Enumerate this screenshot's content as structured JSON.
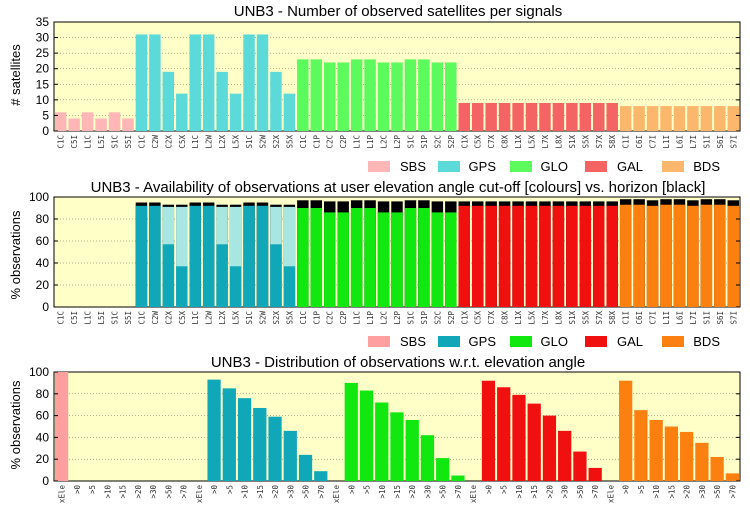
{
  "colors": {
    "plot_bg": "#ffffc8",
    "SBS": "#ffb6b6",
    "GPS": "#5cdada",
    "GLO": "#5cfa5c",
    "GAL": "#f56464",
    "BDS": "#fbb86c",
    "SBS2": "#ff9f9f",
    "GPS2": "#10a8b8",
    "GLO2": "#10e810",
    "GAL2": "#f01010",
    "BDS2": "#fb8010",
    "GPS_light": "#a8e6e2",
    "horizon": "#000000"
  },
  "chart_data": [
    {
      "type": "bar",
      "title": "UNB3 - Number of observed satellites per signals",
      "ylabel": "# satellites",
      "ylim": [
        0,
        35
      ],
      "yticks": [
        0,
        5,
        10,
        15,
        20,
        25,
        30,
        35
      ],
      "legend": [
        "SBS",
        "GPS",
        "GLO",
        "GAL",
        "BDS"
      ],
      "legend_position": "bottom-right",
      "categories": [
        "C1C",
        "C5I",
        "L1C",
        "L5I",
        "S1C",
        "S5I",
        "C1C",
        "C2W",
        "C2X",
        "C5X",
        "L1C",
        "L2W",
        "L2X",
        "L5X",
        "S1C",
        "S2W",
        "S2X",
        "S5X",
        "C1C",
        "C1P",
        "C2C",
        "C2P",
        "L1C",
        "L1P",
        "L2C",
        "L2P",
        "S1C",
        "S1P",
        "S2C",
        "S2P",
        "C1X",
        "C5X",
        "C7X",
        "C8X",
        "L1X",
        "L5X",
        "L7X",
        "L8X",
        "S1X",
        "S5X",
        "S7X",
        "S8X",
        "C1I",
        "C6I",
        "C7I",
        "L1I",
        "L6I",
        "L7I",
        "S1I",
        "S6I",
        "S7I"
      ],
      "systems": [
        "SBS",
        "SBS",
        "SBS",
        "SBS",
        "SBS",
        "SBS",
        "GPS",
        "GPS",
        "GPS",
        "GPS",
        "GPS",
        "GPS",
        "GPS",
        "GPS",
        "GPS",
        "GPS",
        "GPS",
        "GPS",
        "GLO",
        "GLO",
        "GLO",
        "GLO",
        "GLO",
        "GLO",
        "GLO",
        "GLO",
        "GLO",
        "GLO",
        "GLO",
        "GLO",
        "GAL",
        "GAL",
        "GAL",
        "GAL",
        "GAL",
        "GAL",
        "GAL",
        "GAL",
        "GAL",
        "GAL",
        "GAL",
        "GAL",
        "BDS",
        "BDS",
        "BDS",
        "BDS",
        "BDS",
        "BDS",
        "BDS",
        "BDS",
        "BDS"
      ],
      "values": [
        6,
        4,
        6,
        4,
        6,
        4,
        31,
        31,
        19,
        12,
        31,
        31,
        19,
        12,
        31,
        31,
        19,
        12,
        23,
        23,
        22,
        22,
        23,
        23,
        22,
        22,
        23,
        23,
        22,
        22,
        9,
        9,
        9,
        9,
        9,
        9,
        9,
        9,
        9,
        9,
        9,
        9,
        8,
        8,
        8,
        8,
        8,
        8,
        8,
        8,
        8
      ]
    },
    {
      "type": "bar",
      "title": "UNB3 - Availability of observations at user elevation angle cut-off [colours] vs. horizon [black]",
      "ylabel": "% observations",
      "ylim": [
        0,
        100
      ],
      "yticks": [
        0,
        20,
        40,
        60,
        80,
        100
      ],
      "legend": [
        "SBS",
        "GPS",
        "GLO",
        "GAL",
        "BDS"
      ],
      "legend_position": "bottom-right",
      "categories": [
        "C1C",
        "C5I",
        "L1C",
        "L5I",
        "S1C",
        "S5I",
        "C1C",
        "C2W",
        "C2X",
        "C5X",
        "L1C",
        "L2W",
        "L2X",
        "L5X",
        "S1C",
        "S2W",
        "S2X",
        "S5X",
        "C1C",
        "C1P",
        "C2C",
        "C2P",
        "L1C",
        "L1P",
        "L2C",
        "L2P",
        "S1C",
        "S1P",
        "S2C",
        "S2P",
        "C1X",
        "C5X",
        "C7X",
        "C8X",
        "L1X",
        "L5X",
        "L7X",
        "L8X",
        "S1X",
        "S5X",
        "S7X",
        "S8X",
        "C1I",
        "C6I",
        "C7I",
        "L1I",
        "L6I",
        "L7I",
        "S1I",
        "S6I",
        "S7I"
      ],
      "systems": [
        "SBS",
        "SBS",
        "SBS",
        "SBS",
        "SBS",
        "SBS",
        "GPS",
        "GPS",
        "GPS",
        "GPS",
        "GPS",
        "GPS",
        "GPS",
        "GPS",
        "GPS",
        "GPS",
        "GPS",
        "GPS",
        "GLO",
        "GLO",
        "GLO",
        "GLO",
        "GLO",
        "GLO",
        "GLO",
        "GLO",
        "GLO",
        "GLO",
        "GLO",
        "GLO",
        "GAL",
        "GAL",
        "GAL",
        "GAL",
        "GAL",
        "GAL",
        "GAL",
        "GAL",
        "GAL",
        "GAL",
        "GAL",
        "GAL",
        "BDS",
        "BDS",
        "BDS",
        "BDS",
        "BDS",
        "BDS",
        "BDS",
        "BDS",
        "BDS"
      ],
      "series": [
        {
          "values_cutoff": [
            0,
            0,
            0,
            0,
            0,
            0,
            92,
            92,
            57,
            37,
            92,
            92,
            57,
            37,
            92,
            92,
            57,
            37,
            90,
            90,
            86,
            86,
            90,
            90,
            86,
            86,
            90,
            90,
            86,
            86,
            92,
            92,
            92,
            92,
            92,
            92,
            92,
            92,
            92,
            92,
            92,
            92,
            93,
            93,
            92,
            93,
            93,
            92,
            93,
            93,
            92
          ],
          "values_horizon": [
            0,
            0,
            0,
            0,
            0,
            0,
            95,
            95,
            93,
            93,
            95,
            95,
            93,
            93,
            95,
            95,
            93,
            93,
            97,
            97,
            96,
            96,
            97,
            97,
            96,
            96,
            97,
            97,
            96,
            96,
            96,
            96,
            96,
            96,
            96,
            96,
            96,
            96,
            96,
            96,
            96,
            96,
            98,
            98,
            97,
            98,
            98,
            97,
            98,
            98,
            97
          ]
        }
      ]
    },
    {
      "type": "bar",
      "title": "UNB3 - Distribution of observations w.r.t. elevation angle",
      "ylabel": "% observations",
      "ylim": [
        0,
        100
      ],
      "yticks": [
        0,
        20,
        40,
        60,
        80,
        100
      ],
      "categories": [
        "xEle",
        ">0",
        ">5",
        ">10",
        ">15",
        ">20",
        ">30",
        ">50",
        ">70"
      ],
      "groups": [
        {
          "name": "SBS",
          "values": [
            100,
            0,
            0,
            0,
            0,
            0,
            0,
            0,
            0
          ]
        },
        {
          "name": "GPS",
          "values": [
            0,
            93,
            85,
            76,
            67,
            59,
            46,
            24,
            9
          ]
        },
        {
          "name": "GLO",
          "values": [
            0,
            90,
            83,
            72,
            63,
            56,
            42,
            21,
            5
          ]
        },
        {
          "name": "GAL",
          "values": [
            0,
            92,
            86,
            79,
            71,
            60,
            46,
            27,
            12
          ]
        },
        {
          "name": "BDS",
          "values": [
            0,
            92,
            65,
            56,
            50,
            45,
            35,
            22,
            7
          ]
        }
      ]
    }
  ]
}
